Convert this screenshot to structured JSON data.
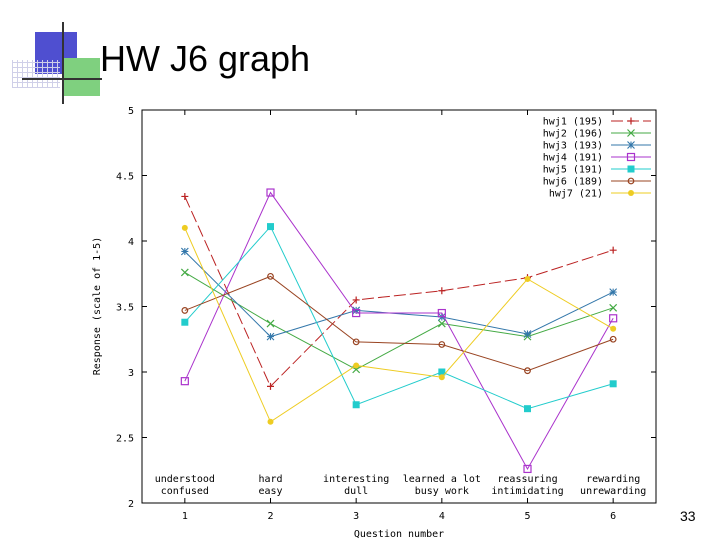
{
  "slide": {
    "title": "HW J6 graph",
    "page_number": "33"
  },
  "chart_data": {
    "type": "line",
    "title": "",
    "xlabel": "Question number",
    "ylabel": "Response (scale of 1-5)",
    "x": [
      1,
      2,
      3,
      4,
      5,
      6
    ],
    "xlim": [
      0.5,
      6.5
    ],
    "ylim": [
      2,
      5
    ],
    "yticks": [
      "2",
      "2.5",
      "3",
      "3.5",
      "4",
      "4.5",
      "5"
    ],
    "xticks": [
      "1",
      "2",
      "3",
      "4",
      "5",
      "6"
    ],
    "grid": false,
    "legend_position": "top-right",
    "category_annotations": [
      {
        "x": 1,
        "top": "understood",
        "bottom": "confused"
      },
      {
        "x": 2,
        "top": "hard",
        "bottom": "easy"
      },
      {
        "x": 3,
        "top": "interesting",
        "bottom": "dull"
      },
      {
        "x": 4,
        "top": "learned a lot",
        "bottom": "busy work"
      },
      {
        "x": 5,
        "top": "reassuring",
        "bottom": "intimidating"
      },
      {
        "x": 6,
        "top": "rewarding",
        "bottom": "unrewarding"
      }
    ],
    "series": [
      {
        "name": "hwj1 (195)",
        "color": "#bb2222",
        "marker": "plus",
        "dash": "long",
        "values": [
          4.34,
          2.89,
          3.55,
          3.62,
          3.72,
          3.93
        ]
      },
      {
        "name": "hwj2 (196)",
        "color": "#44aa44",
        "marker": "cross",
        "dash": "solid",
        "values": [
          3.76,
          3.37,
          3.02,
          3.37,
          3.27,
          3.49
        ]
      },
      {
        "name": "hwj3 (193)",
        "color": "#3377aa",
        "marker": "star",
        "dash": "solid",
        "values": [
          3.92,
          3.27,
          3.47,
          3.42,
          3.29,
          3.61
        ]
      },
      {
        "name": "hwj4 (191)",
        "color": "#aa33cc",
        "marker": "square-open",
        "dash": "solid",
        "values": [
          2.93,
          4.37,
          3.45,
          3.45,
          2.26,
          3.41
        ]
      },
      {
        "name": "hwj5 (191)",
        "color": "#22cccc",
        "marker": "square-filled",
        "dash": "solid",
        "values": [
          3.38,
          4.11,
          2.75,
          3.0,
          2.72,
          2.91
        ]
      },
      {
        "name": "hwj6 (189)",
        "color": "#994422",
        "marker": "circle-open",
        "dash": "solid",
        "values": [
          3.47,
          3.73,
          3.23,
          3.21,
          3.01,
          3.25
        ]
      },
      {
        "name": "hwj7 (21)",
        "color": "#eecc22",
        "marker": "circle-filled",
        "dash": "solid",
        "values": [
          4.1,
          2.62,
          3.05,
          2.96,
          3.71,
          3.33
        ]
      }
    ]
  }
}
